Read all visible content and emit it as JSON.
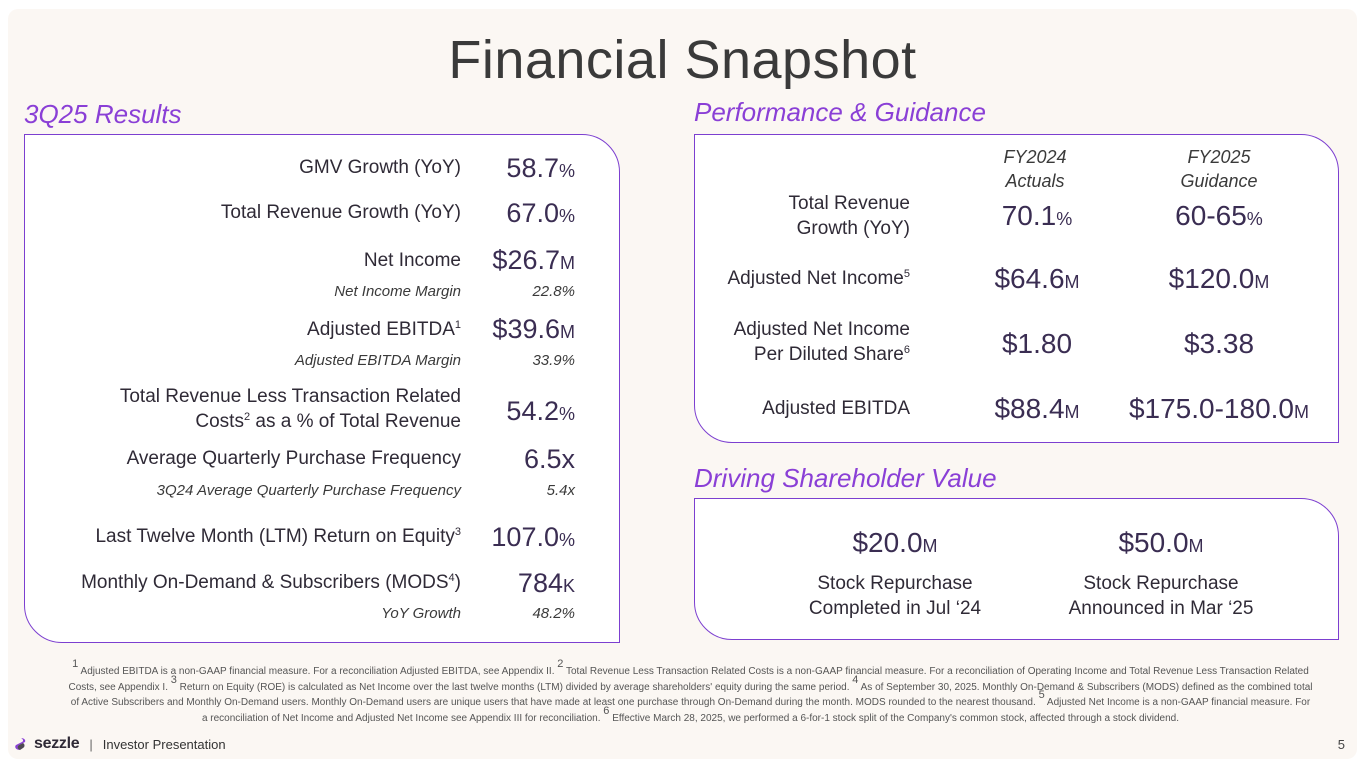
{
  "title": "Financial Snapshot",
  "results": {
    "title": "3Q25 Results",
    "rows": [
      {
        "label": "GMV Growth (YoY)",
        "value": "58.7",
        "unit": "%"
      },
      {
        "label": "Total Revenue Growth (YoY)",
        "value": "67.0",
        "unit": "%"
      },
      {
        "label": "Net Income",
        "value": "$26.7",
        "unit": "M",
        "sub_label": "Net Income Margin",
        "sub_value": "22.8%"
      },
      {
        "label": "Adjusted EBITDA",
        "sup": "1",
        "value": "$39.6",
        "unit": "M",
        "sub_label": "Adjusted EBITDA Margin",
        "sub_value": "33.9%"
      },
      {
        "label_line1": "Total Revenue Less Transaction Related",
        "label_line2a": "Costs",
        "sup": "2",
        "label_line2b": " as a % of Total Revenue",
        "value": "54.2",
        "unit": "%"
      },
      {
        "label": "Average Quarterly Purchase Frequency",
        "value": "6.5x",
        "sub_label": "3Q24 Average Quarterly Purchase Frequency",
        "sub_value": "5.4x"
      },
      {
        "label": "Last Twelve Month (LTM) Return on Equity",
        "sup": "3",
        "value": "107.0",
        "unit": "%"
      },
      {
        "label_a": "Monthly On-Demand & Subscribers (MODS",
        "sup": "4",
        "label_b": ")",
        "value": "784",
        "unit": "K",
        "sub_label": "YoY Growth",
        "sub_value": "48.2%"
      }
    ]
  },
  "performance": {
    "title": "Performance & Guidance",
    "col1_line1": "FY2024",
    "col1_line2": "Actuals",
    "col2_line1": "FY2025",
    "col2_line2": "Guidance",
    "rows": [
      {
        "label_line1": "Total Revenue",
        "label_line2": "Growth (YoY)",
        "v1": "70.1",
        "u1": "%",
        "v2": "60-65",
        "u2": "%"
      },
      {
        "label": "Adjusted Net Income",
        "sup": "5",
        "v1": "$64.6",
        "u1": "M",
        "v2": "$120.0",
        "u2": "M"
      },
      {
        "label_line1": "Adjusted Net Income",
        "label_line2": "Per Diluted Share",
        "sup": "6",
        "v1": "$1.80",
        "v2": "$3.38"
      },
      {
        "label": "Adjusted EBITDA",
        "v1": "$88.4",
        "u1": "M",
        "v2": "$175.0-180.0",
        "u2": "M"
      }
    ]
  },
  "shareholder": {
    "title": "Driving Shareholder Value",
    "items": [
      {
        "amount": "$20.0",
        "unit": "M",
        "line1": "Stock Repurchase",
        "line2": "Completed in Jul ‘24"
      },
      {
        "amount": "$50.0",
        "unit": "M",
        "line1": "Stock Repurchase",
        "line2": "Announced in Mar ‘25"
      }
    ]
  },
  "footnotes": {
    "n1": "1",
    "t1": " Adjusted EBITDA is a non-GAAP financial measure. For a reconciliation Adjusted EBITDA, see Appendix II. ",
    "n2": "2",
    "t2": " Total Revenue Less Transaction Related Costs is a non-GAAP financial measure. For a reconciliation of Operating Income and Total Revenue Less Transaction Related Costs, see Appendix I. ",
    "n3": "3",
    "t3": " Return on Equity (ROE) is calculated as Net Income over the last twelve months (LTM) divided by average shareholders' equity during the same period. ",
    "n4": "4",
    "t4": " As of September 30, 2025. Monthly On-Demand & Subscribers (MODS) defined as the combined total of Active Subscribers and Monthly On-Demand users. Monthly On-Demand users are unique users that have made at least one purchase through On-Demand during the month. MODS rounded to the nearest thousand. ",
    "n5": "5",
    "t5": " Adjusted Net Income is a non-GAAP financial measure. For a reconciliation of Net Income and Adjusted Net Income see Appendix III for reconciliation. ",
    "n6": "6",
    "t6": " Effective March 28, 2025, we performed a 6-for-1 stock split of the Company's common stock, affected through a stock dividend."
  },
  "footer": {
    "brand": "sezzle",
    "separator": "|",
    "subtitle": "Investor Presentation",
    "page": "5"
  },
  "colors": {
    "accent": "#8a3fd6",
    "value": "#3a2d52",
    "background": "#fbf7f3"
  }
}
